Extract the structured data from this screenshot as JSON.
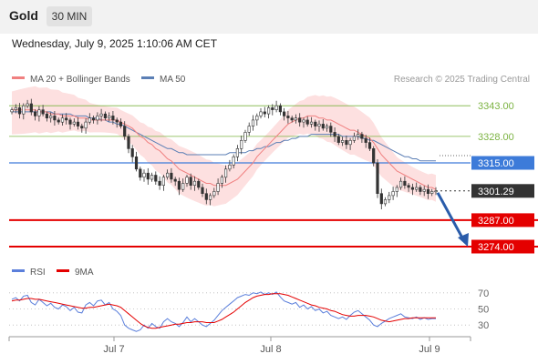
{
  "header": {
    "asset": "Gold",
    "timeframe": "30 MIN",
    "datetime": "Wednesday, July 9, 2025 1:10:06 AM CET"
  },
  "legend": {
    "ma20": "MA 20 + Bollinger Bands",
    "ma50": "MA 50",
    "credit": "Research © 2025 Trading Central"
  },
  "rsi_legend": {
    "rsi": "RSI",
    "ma": "9MA"
  },
  "colors": {
    "resistance": "#7cb342",
    "pivot": "#3d7bd9",
    "support": "#e40000",
    "ma20": "#f08080",
    "ma50": "#5b7fb5",
    "band": "#fde0e0",
    "last": "#333333",
    "arrow": "#2a5caa"
  },
  "levels": [
    {
      "value": 3343.0,
      "label": "3343.00",
      "kind": "resistance"
    },
    {
      "value": 3328.0,
      "label": "3328.00",
      "kind": "resistance"
    },
    {
      "value": 3315.0,
      "label": "3315.00",
      "kind": "pivot"
    },
    {
      "value": 3301.29,
      "label": "3301.29",
      "kind": "last"
    },
    {
      "value": 3287.0,
      "label": "3287.00",
      "kind": "support"
    },
    {
      "value": 3274.0,
      "label": "3274.00",
      "kind": "support"
    }
  ],
  "chart_data": [
    {
      "type": "candlestick",
      "title": "Gold",
      "ylim": [
        3270,
        3352
      ],
      "x_tick_labels": [
        "Jul 7",
        "Jul 8",
        "Jul 9"
      ],
      "close": [
        3341,
        3342,
        3339,
        3343,
        3344,
        3340,
        3338,
        3341,
        3339,
        3337,
        3338,
        3336,
        3335,
        3337,
        3336,
        3334,
        3335,
        3333,
        3332,
        3335,
        3337,
        3336,
        3338,
        3339,
        3337,
        3338,
        3336,
        3335,
        3333,
        3328,
        3322,
        3318,
        3312,
        3308,
        3310,
        3307,
        3309,
        3306,
        3304,
        3308,
        3310,
        3307,
        3306,
        3302,
        3305,
        3308,
        3304,
        3306,
        3303,
        3300,
        3297,
        3299,
        3301,
        3305,
        3308,
        3312,
        3314,
        3318,
        3322,
        3326,
        3330,
        3333,
        3336,
        3338,
        3340,
        3339,
        3342,
        3341,
        3343,
        3340,
        3338,
        3337,
        3336,
        3337,
        3335,
        3336,
        3334,
        3335,
        3333,
        3334,
        3332,
        3333,
        3330,
        3328,
        3325,
        3326,
        3324,
        3326,
        3328,
        3329,
        3327,
        3325,
        3322,
        3315,
        3300,
        3295,
        3297,
        3299,
        3301,
        3303,
        3306,
        3304,
        3303,
        3302,
        3303,
        3301,
        3302,
        3300,
        3301,
        3301.29
      ],
      "ma20": [
        3341,
        3341,
        3341,
        3341,
        3341,
        3341,
        3341,
        3340,
        3340,
        3340,
        3339,
        3339,
        3339,
        3338,
        3338,
        3338,
        3338,
        3337,
        3337,
        3337,
        3336,
        3336,
        3336,
        3336,
        3336,
        3336,
        3336,
        3336,
        3335,
        3334,
        3333,
        3332,
        3330,
        3328,
        3327,
        3325,
        3324,
        3322,
        3321,
        3319,
        3317,
        3316,
        3314,
        3312,
        3311,
        3310,
        3309,
        3308,
        3307,
        3306,
        3305,
        3305,
        3304,
        3304,
        3304,
        3304,
        3305,
        3306,
        3307,
        3309,
        3311,
        3313,
        3315,
        3318,
        3320,
        3322,
        3324,
        3326,
        3328,
        3330,
        3332,
        3334,
        3335,
        3336,
        3337,
        3337,
        3338,
        3338,
        3338,
        3337,
        3337,
        3336,
        3336,
        3335,
        3334,
        3333,
        3332,
        3331,
        3331,
        3330,
        3329,
        3328,
        3327,
        3325,
        3322,
        3319,
        3317,
        3315,
        3313,
        3311,
        3310,
        3309,
        3308,
        3307,
        3306,
        3305,
        3304,
        3303,
        3303,
        3302
      ],
      "ma50": [
        3340,
        3340,
        3340,
        3340,
        3340,
        3340,
        3340,
        3340,
        3340,
        3340,
        3340,
        3339,
        3339,
        3339,
        3339,
        3339,
        3338,
        3338,
        3338,
        3338,
        3337,
        3337,
        3337,
        3336,
        3336,
        3335,
        3335,
        3334,
        3334,
        3333,
        3332,
        3331,
        3330,
        3329,
        3328,
        3327,
        3326,
        3325,
        3324,
        3323,
        3322,
        3322,
        3321,
        3320,
        3320,
        3319,
        3319,
        3319,
        3319,
        3319,
        3319,
        3319,
        3319,
        3319,
        3319,
        3319,
        3320,
        3320,
        3320,
        3320,
        3320,
        3321,
        3321,
        3322,
        3322,
        3323,
        3323,
        3324,
        3325,
        3325,
        3326,
        3326,
        3327,
        3327,
        3328,
        3328,
        3328,
        3329,
        3329,
        3329,
        3329,
        3329,
        3329,
        3329,
        3329,
        3328,
        3328,
        3328,
        3328,
        3328,
        3327,
        3327,
        3326,
        3326,
        3325,
        3324,
        3323,
        3322,
        3321,
        3320,
        3319,
        3318,
        3318,
        3317,
        3317,
        3316,
        3316,
        3316,
        3316,
        3316
      ]
    },
    {
      "type": "line",
      "title": "RSI",
      "ylim": [
        20,
        80
      ],
      "y_ticks": [
        70,
        50,
        30
      ],
      "series": [
        {
          "name": "RSI",
          "values": [
            62,
            64,
            60,
            66,
            67,
            58,
            55,
            62,
            58,
            54,
            57,
            52,
            50,
            55,
            53,
            48,
            52,
            46,
            45,
            55,
            58,
            54,
            60,
            61,
            55,
            58,
            50,
            47,
            42,
            30,
            26,
            24,
            22,
            24,
            30,
            26,
            32,
            28,
            26,
            34,
            38,
            34,
            32,
            28,
            33,
            40,
            34,
            38,
            34,
            30,
            28,
            32,
            36,
            42,
            48,
            52,
            56,
            60,
            64,
            66,
            68,
            67,
            70,
            69,
            71,
            68,
            70,
            68,
            71,
            65,
            60,
            58,
            56,
            58,
            52,
            55,
            50,
            53,
            48,
            50,
            45,
            47,
            42,
            40,
            38,
            40,
            37,
            42,
            46,
            48,
            44,
            40,
            36,
            30,
            28,
            32,
            35,
            38,
            40,
            42,
            44,
            40,
            39,
            38,
            40,
            37,
            39,
            37,
            38,
            38
          ],
          "color": "#5b7fdb"
        },
        {
          "name": "9MA",
          "values": [
            60,
            61,
            61,
            62,
            63,
            63,
            62,
            62,
            61,
            60,
            59,
            58,
            57,
            56,
            55,
            54,
            53,
            52,
            51,
            51,
            52,
            52,
            53,
            54,
            55,
            56,
            55,
            54,
            52,
            48,
            44,
            40,
            36,
            32,
            29,
            27,
            26,
            26,
            27,
            28,
            29,
            30,
            31,
            31,
            32,
            33,
            33,
            34,
            34,
            34,
            33,
            33,
            33,
            35,
            37,
            40,
            43,
            46,
            50,
            54,
            58,
            61,
            64,
            66,
            67,
            68,
            68,
            69,
            69,
            69,
            68,
            67,
            65,
            63,
            61,
            59,
            57,
            55,
            54,
            52,
            51,
            50,
            48,
            47,
            45,
            43,
            42,
            41,
            41,
            42,
            42,
            42,
            41,
            40,
            38,
            36,
            35,
            34,
            35,
            36,
            37,
            38,
            38,
            39,
            39,
            39,
            39,
            39,
            39,
            39
          ],
          "color": "#e40000"
        }
      ]
    }
  ]
}
